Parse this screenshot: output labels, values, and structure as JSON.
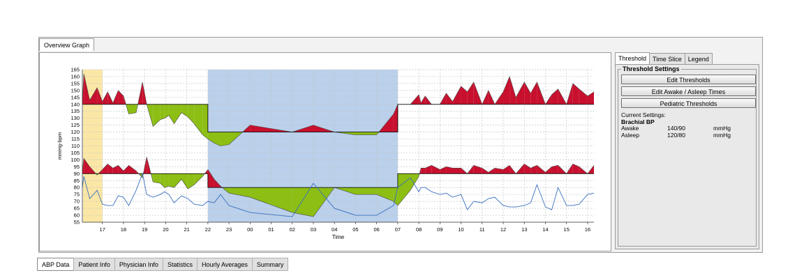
{
  "overview_tab": "Overview Graph",
  "right_tabs": [
    {
      "label": "Threshold",
      "active": true
    },
    {
      "label": "Time Slice",
      "active": false
    },
    {
      "label": "Legend",
      "active": false
    }
  ],
  "threshold": {
    "group_title": "Threshold Settings",
    "buttons": [
      "Edit Thresholds",
      "Edit Awake / Asleep Times",
      "Pediatric Thresholds"
    ],
    "current_label": "Current Settings:",
    "type": "Brachial BP",
    "rows": [
      {
        "label": "Awake",
        "value": "140/90",
        "unit": "mmHg"
      },
      {
        "label": "Asleep",
        "value": "120/80",
        "unit": "mmHg"
      }
    ]
  },
  "bottom_tabs": [
    {
      "label": "ABP Data",
      "active": true
    },
    {
      "label": "Patient Info",
      "active": false
    },
    {
      "label": "Physician Info",
      "active": false
    },
    {
      "label": "Statistics",
      "active": false
    },
    {
      "label": "Hourly Averages",
      "active": false
    },
    {
      "label": "Summary",
      "active": false
    }
  ],
  "colors": {
    "above_threshold": "#c8102e",
    "below_threshold": "#8cbe14",
    "heart_rate_line": "#3a6fbf",
    "asleep_shade": "#a9c4e6",
    "selection_shade": "#fbe7a5"
  },
  "chart_data": {
    "type": "area",
    "xlabel": "Time",
    "ylabel": "mmHg-bpm",
    "ylim": [
      55,
      165
    ],
    "yticks": [
      55,
      60,
      65,
      70,
      75,
      80,
      85,
      90,
      95,
      100,
      105,
      110,
      115,
      120,
      125,
      130,
      135,
      140,
      145,
      150,
      155,
      160,
      165
    ],
    "xticks": [
      "17",
      "18",
      "19",
      "20",
      "21",
      "22",
      "23",
      "00",
      "01",
      "02",
      "03",
      "04",
      "05",
      "06",
      "07",
      "08",
      "09",
      "10",
      "11",
      "12",
      "13",
      "14",
      "15",
      "16"
    ],
    "xlim_hours": [
      16.05,
      40.3
    ],
    "grid": true,
    "asleep_period": [
      "22:00",
      "07:00"
    ],
    "highlight_period": [
      "16:05",
      "17:00"
    ],
    "thresholds": {
      "systolic": {
        "awake": 140,
        "asleep": 120
      },
      "diastolic": {
        "awake": 90,
        "asleep": 80
      }
    },
    "series": [
      {
        "name": "Systolic",
        "x": [
          16.05,
          16.12,
          16.4,
          16.75,
          17.0,
          17.25,
          17.5,
          17.75,
          18.0,
          18.25,
          18.6,
          18.9,
          19.1,
          19.4,
          19.75,
          19.95,
          20.15,
          20.4,
          20.75,
          21.05,
          21.35,
          21.75,
          22.0,
          22.3,
          22.6,
          23.0,
          24.0,
          26.0,
          27.0,
          28.0,
          29.0,
          30.0,
          30.8,
          31.0,
          31.6,
          32.0,
          32.1,
          32.3,
          32.6,
          33.0,
          33.3,
          33.6,
          34.0,
          34.3,
          34.6,
          35.0,
          35.3,
          35.6,
          36.0,
          36.3,
          36.6,
          37.0,
          37.3,
          37.6,
          38.0,
          38.3,
          38.6,
          39.0,
          39.3,
          39.6,
          40.0,
          40.3
        ],
        "y": [
          142,
          162,
          143,
          152,
          142,
          149,
          141,
          150,
          146,
          133,
          134,
          156,
          140,
          124,
          129,
          130,
          132,
          126,
          134,
          131,
          126,
          118,
          115,
          112,
          110,
          111,
          125,
          120,
          125,
          120,
          118,
          118,
          133,
          140,
          140,
          147,
          141,
          146,
          140,
          140,
          148,
          142,
          153,
          149,
          156,
          140,
          150,
          140,
          149,
          160,
          145,
          156,
          148,
          156,
          140,
          147,
          151,
          140,
          155,
          151,
          146,
          149
        ]
      },
      {
        "name": "Diastolic",
        "x": [
          16.05,
          16.12,
          16.4,
          16.75,
          17.0,
          17.25,
          17.5,
          17.75,
          18.0,
          18.25,
          18.6,
          18.9,
          19.1,
          19.4,
          19.75,
          19.95,
          20.15,
          20.4,
          20.75,
          21.05,
          21.35,
          21.75,
          22.0,
          22.3,
          22.6,
          23.0,
          24.0,
          26.0,
          27.0,
          28.0,
          29.0,
          30.0,
          30.8,
          31.0,
          31.6,
          32.0,
          32.1,
          32.3,
          32.6,
          33.0,
          33.3,
          33.6,
          34.0,
          34.3,
          34.6,
          35.0,
          35.3,
          35.6,
          36.0,
          36.3,
          36.6,
          37.0,
          37.3,
          37.6,
          38.0,
          38.3,
          38.6,
          39.0,
          39.3,
          39.6,
          40.0,
          40.3
        ],
        "y": [
          92,
          101,
          95,
          89,
          93,
          97,
          94,
          96,
          92,
          96,
          92,
          87,
          102,
          84,
          83,
          80,
          81,
          80,
          86,
          79,
          82,
          88,
          93,
          86,
          81,
          76,
          73,
          62,
          59,
          80,
          75,
          75,
          70,
          67,
          78,
          88,
          94,
          94,
          96,
          93,
          95,
          94,
          94,
          90,
          96,
          94,
          91,
          94,
          93,
          96,
          90,
          97,
          94,
          96,
          91,
          95,
          96,
          90,
          97,
          95,
          90,
          96
        ]
      },
      {
        "name": "Heart Rate",
        "x": [
          16.05,
          16.12,
          16.4,
          16.75,
          17.0,
          17.25,
          17.5,
          17.75,
          18.0,
          18.25,
          18.6,
          18.9,
          19.1,
          19.4,
          19.75,
          19.95,
          20.15,
          20.4,
          20.75,
          21.05,
          21.35,
          21.75,
          22.0,
          22.3,
          22.6,
          23.0,
          24.0,
          26.0,
          27.0,
          28.0,
          29.0,
          30.0,
          30.8,
          31.0,
          31.6,
          32.0,
          32.1,
          32.3,
          32.6,
          33.0,
          33.3,
          33.6,
          34.0,
          34.3,
          34.6,
          35.0,
          35.3,
          35.6,
          36.0,
          36.3,
          36.6,
          37.0,
          37.3,
          37.6,
          38.0,
          38.3,
          38.6,
          39.0,
          39.3,
          39.6,
          40.0,
          40.3
        ],
        "y": [
          80,
          88,
          72,
          78,
          68,
          67,
          67,
          74,
          73,
          67,
          78,
          90,
          75,
          73,
          75,
          77,
          75,
          69,
          74,
          72,
          68,
          67,
          70,
          69,
          75,
          67,
          62,
          59,
          83,
          65,
          60,
          60,
          67,
          80,
          87,
          77,
          80,
          80,
          77,
          75,
          76,
          73,
          75,
          64,
          70,
          69,
          72,
          73,
          67,
          66,
          66,
          67,
          69,
          82,
          66,
          64,
          80,
          67,
          67,
          68,
          75,
          76
        ]
      }
    ]
  }
}
